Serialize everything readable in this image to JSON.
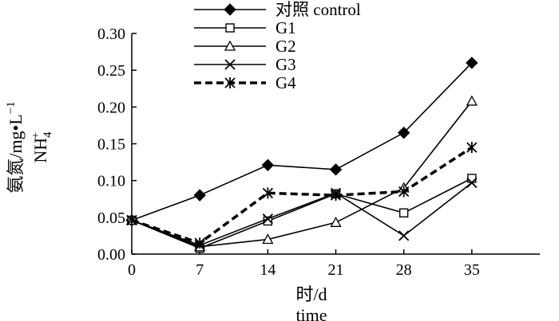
{
  "chart_data": {
    "type": "line",
    "x": [
      0,
      7,
      14,
      21,
      28,
      35
    ],
    "xticks": [
      "0",
      "7",
      "14",
      "21",
      "28",
      "35"
    ],
    "xlim": [
      0,
      42
    ],
    "yticks": [
      "0.00",
      "0.05",
      "0.10",
      "0.15",
      "0.20",
      "0.25",
      "0.30"
    ],
    "ylim": [
      0,
      0.3
    ],
    "xlabel": "时/d",
    "xlabel_en": "time",
    "ylabel": "氨氮/mg•L",
    "ylabel_sup": "−1",
    "ylabel_sub_main": "NH",
    "ylabel_sub_sub": "4",
    "ylabel_sub_sup": "+",
    "legend_position": "top-center",
    "grid": false,
    "series": [
      {
        "name": "对照 control",
        "marker": "filled-diamond",
        "dash": false,
        "values": [
          0.046,
          0.08,
          0.121,
          0.115,
          0.165,
          0.26
        ]
      },
      {
        "name": "G1",
        "marker": "open-square",
        "dash": false,
        "values": [
          0.046,
          0.008,
          0.045,
          0.082,
          0.056,
          0.103
        ]
      },
      {
        "name": "G2",
        "marker": "open-triangle",
        "dash": false,
        "values": [
          0.046,
          0.01,
          0.02,
          0.043,
          0.09,
          0.208
        ]
      },
      {
        "name": "G3",
        "marker": "x",
        "dash": false,
        "values": [
          0.046,
          0.012,
          0.048,
          0.083,
          0.025,
          0.097
        ]
      },
      {
        "name": "G4",
        "marker": "asterisk",
        "dash": true,
        "values": [
          0.046,
          0.015,
          0.083,
          0.08,
          0.085,
          0.145
        ]
      }
    ]
  }
}
